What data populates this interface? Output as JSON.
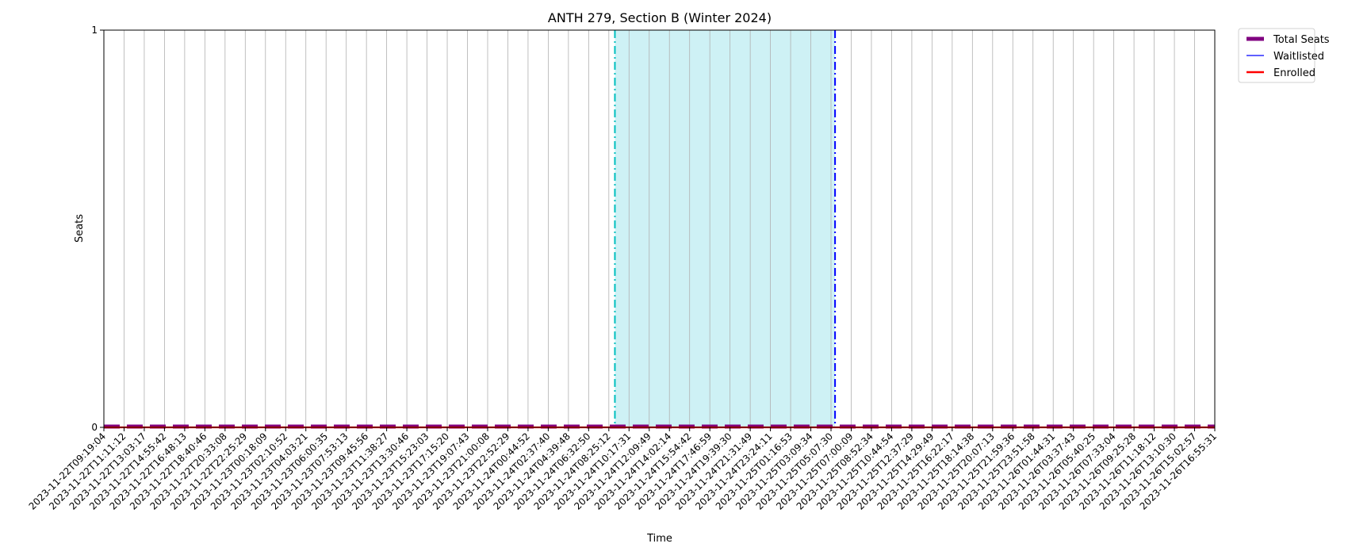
{
  "chart_data": {
    "type": "line",
    "title": "ANTH 279, Section B (Winter 2024)",
    "xlabel": "Time",
    "ylabel": "Seats",
    "ylim": [
      0,
      1
    ],
    "yticks": [
      0,
      1
    ],
    "grid": "vertical",
    "legend_position": "outside-top-right",
    "categories": [
      "2023-11-22T09:19:04",
      "2023-11-22T11:11:12",
      "2023-11-22T13:03:17",
      "2023-11-22T14:55:42",
      "2023-11-22T16:48:13",
      "2023-11-22T18:40:46",
      "2023-11-22T20:33:08",
      "2023-11-22T22:25:29",
      "2023-11-23T00:18:09",
      "2023-11-23T02:10:52",
      "2023-11-23T04:03:21",
      "2023-11-23T06:00:35",
      "2023-11-23T07:53:13",
      "2023-11-23T09:45:56",
      "2023-11-23T11:38:27",
      "2023-11-23T13:30:46",
      "2023-11-23T15:23:03",
      "2023-11-23T17:15:20",
      "2023-11-23T19:07:43",
      "2023-11-23T21:00:08",
      "2023-11-23T22:52:29",
      "2023-11-24T00:44:52",
      "2023-11-24T02:37:40",
      "2023-11-24T04:39:48",
      "2023-11-24T06:32:50",
      "2023-11-24T08:25:12",
      "2023-11-24T10:17:31",
      "2023-11-24T12:09:49",
      "2023-11-24T14:02:14",
      "2023-11-24T15:54:42",
      "2023-11-24T17:46:59",
      "2023-11-24T19:39:30",
      "2023-11-24T21:31:49",
      "2023-11-24T23:24:11",
      "2023-11-25T01:16:53",
      "2023-11-25T03:09:34",
      "2023-11-25T05:07:30",
      "2023-11-25T07:00:09",
      "2023-11-25T08:52:34",
      "2023-11-25T10:44:54",
      "2023-11-25T12:37:29",
      "2023-11-25T14:29:49",
      "2023-11-25T16:22:17",
      "2023-11-25T18:14:38",
      "2023-11-25T20:07:13",
      "2023-11-25T21:59:36",
      "2023-11-25T23:51:58",
      "2023-11-26T01:44:31",
      "2023-11-26T03:37:43",
      "2023-11-26T05:40:25",
      "2023-11-26T07:33:04",
      "2023-11-26T09:25:28",
      "2023-11-26T11:18:12",
      "2023-11-26T13:10:30",
      "2023-11-26T15:02:57",
      "2023-11-26T16:55:31"
    ],
    "series": [
      {
        "name": "Total Seats",
        "color": "#800080",
        "style": "dashed-thick",
        "values": [
          0,
          0,
          0,
          0,
          0,
          0,
          0,
          0,
          0,
          0,
          0,
          0,
          0,
          0,
          0,
          0,
          0,
          0,
          0,
          0,
          0,
          0,
          0,
          0,
          0,
          0,
          0,
          0,
          0,
          0,
          0,
          0,
          0,
          0,
          0,
          0,
          0,
          0,
          0,
          0,
          0,
          0,
          0,
          0,
          0,
          0,
          0,
          0,
          0,
          0,
          0,
          0,
          0,
          0,
          0,
          0
        ]
      },
      {
        "name": "Waitlisted",
        "color": "#0000ff",
        "style": "solid-thin",
        "values": [
          0,
          0,
          0,
          0,
          0,
          0,
          0,
          0,
          0,
          0,
          0,
          0,
          0,
          0,
          0,
          0,
          0,
          0,
          0,
          0,
          0,
          0,
          0,
          0,
          0,
          0,
          0,
          0,
          0,
          0,
          0,
          0,
          0,
          0,
          0,
          0,
          0,
          0,
          0,
          0,
          0,
          0,
          0,
          0,
          0,
          0,
          0,
          0,
          0,
          0,
          0,
          0,
          0,
          0,
          0,
          0
        ]
      },
      {
        "name": "Enrolled",
        "color": "#ff0000",
        "style": "solid",
        "values": [
          0,
          0,
          0,
          0,
          0,
          0,
          0,
          0,
          0,
          0,
          0,
          0,
          0,
          0,
          0,
          0,
          0,
          0,
          0,
          0,
          0,
          0,
          0,
          0,
          0,
          0,
          0,
          0,
          0,
          0,
          0,
          0,
          0,
          0,
          0,
          0,
          0,
          0,
          0,
          0,
          0,
          0,
          0,
          0,
          0,
          0,
          0,
          0,
          0,
          0,
          0,
          0,
          0,
          0,
          0,
          0
        ]
      }
    ],
    "shaded_region": {
      "start_index": 25.3,
      "end_index": 36.2,
      "color": "#aee8ee"
    },
    "vertical_markers": [
      {
        "index": 25.3,
        "color": "#00bfbf",
        "style": "dashdot"
      },
      {
        "index": 36.2,
        "color": "#0000ff",
        "style": "dashdot"
      }
    ]
  }
}
